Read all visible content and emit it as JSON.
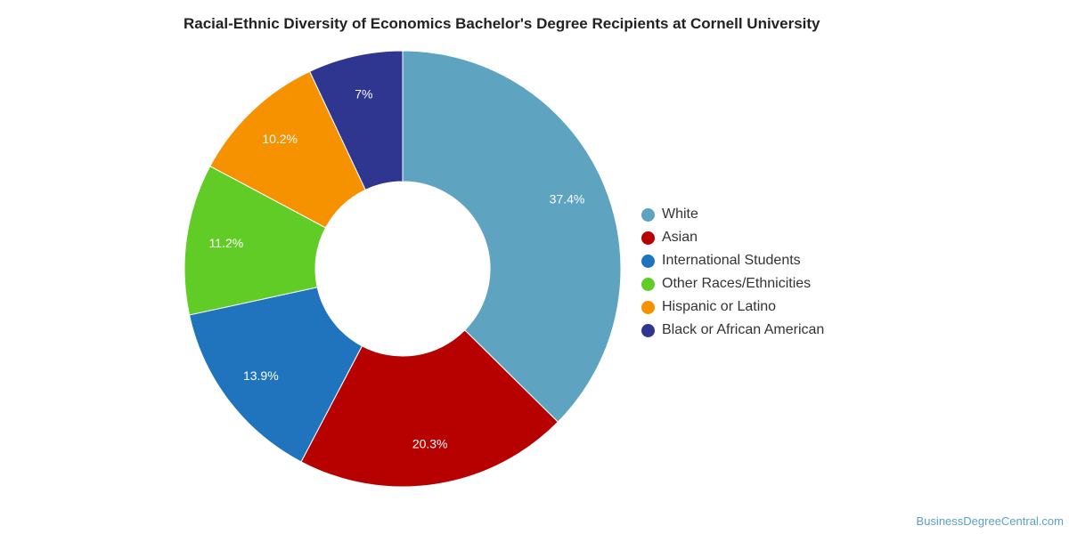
{
  "chart_data": {
    "type": "pie",
    "title": "Racial-Ethnic Diversity of Economics Bachelor's Degree Recipients at Cornell University",
    "donut": true,
    "legend_position": "right",
    "slices": [
      {
        "name": "White",
        "value": 37.4,
        "label": "37.4%",
        "color": "#5ea3c0"
      },
      {
        "name": "Asian",
        "value": 20.3,
        "label": "20.3%",
        "color": "#b70000"
      },
      {
        "name": "International Students",
        "value": 13.9,
        "label": "13.9%",
        "color": "#1f74bd"
      },
      {
        "name": "Other Races/Ethnicities",
        "value": 11.2,
        "label": "11.2%",
        "color": "#61cc25"
      },
      {
        "name": "Hispanic or Latino",
        "value": 10.2,
        "label": "10.2%",
        "color": "#f69200"
      },
      {
        "name": "Black or African American",
        "value": 7,
        "label": "7%",
        "color": "#2e368f"
      }
    ]
  },
  "footer": {
    "credit": "BusinessDegreeCentral.com"
  }
}
